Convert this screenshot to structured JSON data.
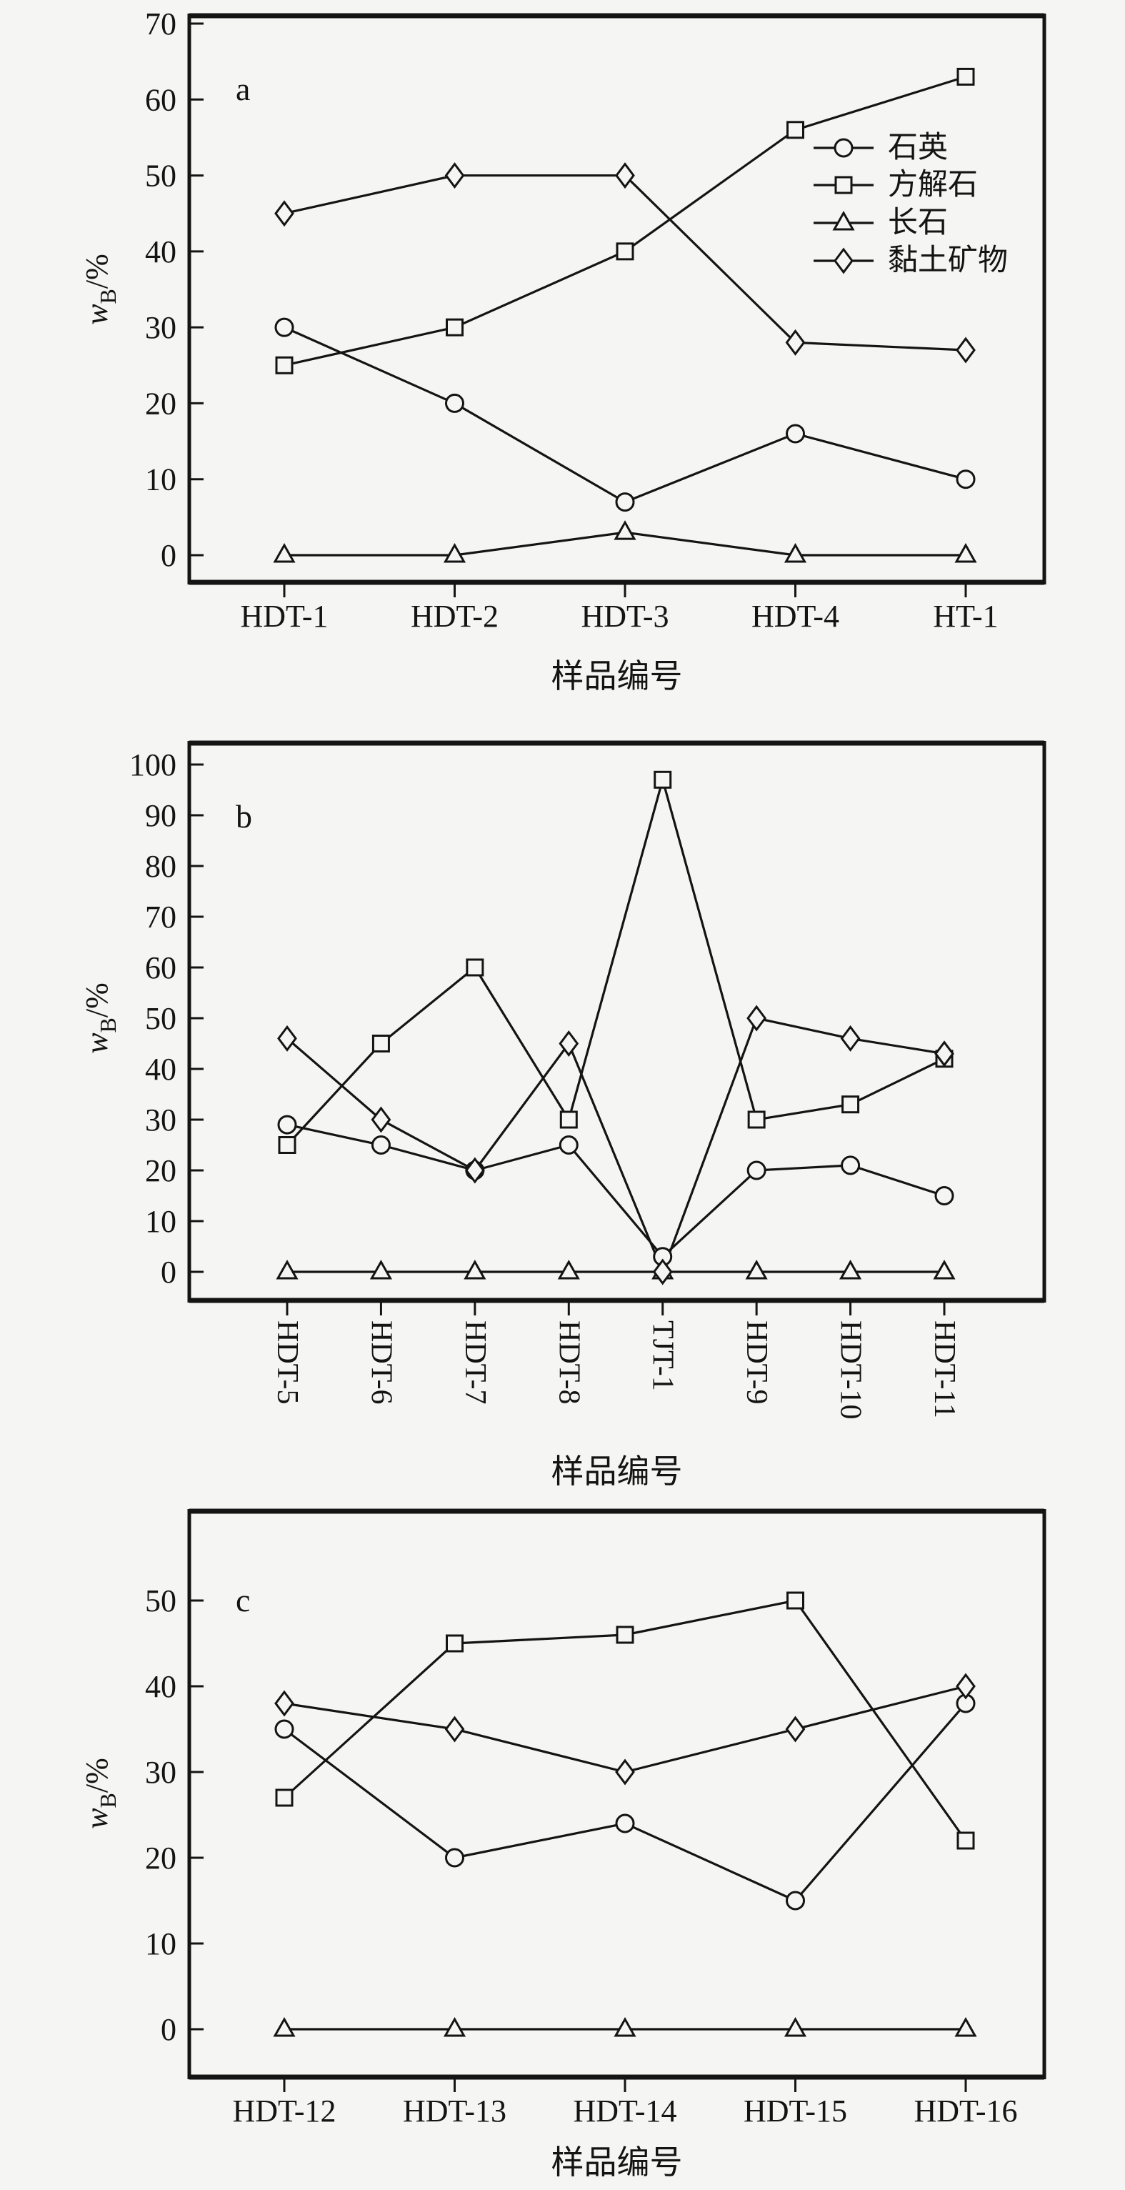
{
  "page": {
    "background": "#f5f5f4",
    "ink": "#141414",
    "figure_description": "三个矿物组成折线图 a b c"
  },
  "y_axis_label": {
    "variable": "w",
    "subscript": "B",
    "unit": "/%"
  },
  "x_axis_title": "样品编号",
  "legend": {
    "entries": [
      {
        "label": "石英",
        "marker": "circle-icon"
      },
      {
        "label": "方解石",
        "marker": "square-icon"
      },
      {
        "label": "长石",
        "marker": "triangle-icon"
      },
      {
        "label": "黏土矿物",
        "marker": "diamond-icon"
      }
    ]
  },
  "chart_data": [
    {
      "type": "line",
      "panel_label": "a",
      "xlabel": "样品编号",
      "ylabel": "wB/%",
      "categories": [
        "HDT-1",
        "HDT-2",
        "HDT-3",
        "HDT-4",
        "HT-1"
      ],
      "yticks": [
        0,
        10,
        20,
        30,
        40,
        50,
        60,
        70
      ],
      "ylim": [
        0,
        70
      ],
      "x_tick_rotation": 0,
      "grid": false,
      "legend_position": "inside-upper-right",
      "series": [
        {
          "name": "石英",
          "marker": "circle",
          "values": [
            30,
            20,
            7,
            16,
            10
          ]
        },
        {
          "name": "方解石",
          "marker": "square",
          "values": [
            25,
            30,
            40,
            56,
            63
          ]
        },
        {
          "name": "长石",
          "marker": "triangle",
          "values": [
            0,
            0,
            3,
            0,
            0
          ]
        },
        {
          "name": "黏土矿物",
          "marker": "diamond",
          "values": [
            45,
            50,
            50,
            28,
            27
          ]
        }
      ]
    },
    {
      "type": "line",
      "panel_label": "b",
      "xlabel": "样品编号",
      "ylabel": "wB/%",
      "categories": [
        "HDT-5",
        "HDT-6",
        "HDT-7",
        "HDT-8",
        "TJT-1",
        "HDT-9",
        "HDT-10",
        "HDT-11"
      ],
      "yticks": [
        0,
        10,
        20,
        30,
        40,
        50,
        60,
        70,
        80,
        90,
        100
      ],
      "ylim": [
        0,
        100
      ],
      "x_tick_rotation": 90,
      "grid": false,
      "legend_position": "none",
      "series": [
        {
          "name": "石英",
          "marker": "circle",
          "values": [
            29,
            25,
            20,
            25,
            3,
            20,
            21,
            15
          ]
        },
        {
          "name": "方解石",
          "marker": "square",
          "values": [
            25,
            45,
            60,
            30,
            97,
            30,
            33,
            42
          ]
        },
        {
          "name": "长石",
          "marker": "triangle",
          "values": [
            0,
            0,
            0,
            0,
            0,
            0,
            0,
            0
          ]
        },
        {
          "name": "黏土矿物",
          "marker": "diamond",
          "values": [
            46,
            30,
            20,
            45,
            0,
            50,
            46,
            43
          ]
        }
      ]
    },
    {
      "type": "line",
      "panel_label": "c",
      "xlabel": "样品编号",
      "ylabel": "wB/%",
      "categories": [
        "HDT-12",
        "HDT-13",
        "HDT-14",
        "HDT-15",
        "HDT-16"
      ],
      "yticks": [
        0,
        10,
        20,
        30,
        40,
        50
      ],
      "ylim": [
        0,
        55
      ],
      "x_tick_rotation": 0,
      "grid": false,
      "legend_position": "none",
      "series": [
        {
          "name": "石英",
          "marker": "circle",
          "values": [
            35,
            20,
            24,
            15,
            38
          ]
        },
        {
          "name": "方解石",
          "marker": "square",
          "values": [
            27,
            45,
            46,
            50,
            22
          ]
        },
        {
          "name": "长石",
          "marker": "triangle",
          "values": [
            0,
            0,
            0,
            0,
            0
          ]
        },
        {
          "name": "黏土矿物",
          "marker": "diamond",
          "values": [
            38,
            35,
            30,
            35,
            40
          ]
        }
      ]
    }
  ]
}
